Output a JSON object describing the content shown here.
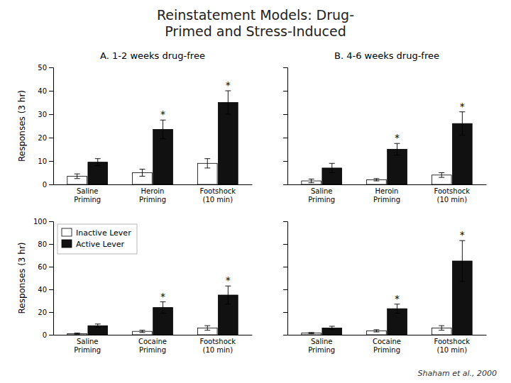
{
  "title": "Reinstatement Models: Drug-\nPrimed and Stress-Induced",
  "annotations": [
    "Shaham et al., 2000"
  ],
  "chart_data": [
    {
      "type": "bar",
      "title": "A. 1-2 weeks drug-free",
      "ylabel": "Responses (3 hr)",
      "categories": [
        "Saline\nPriming",
        "Heroin\nPriming",
        "Footshock\n(10 min)"
      ],
      "series": [
        {
          "name": "Inactive Lever",
          "color": "#ffffff",
          "values": [
            3.5,
            5.0,
            9.0
          ],
          "errors": [
            1.0,
            1.5,
            2.0
          ]
        },
        {
          "name": "Active Lever",
          "color": "#111111",
          "values": [
            9.5,
            23.5,
            35.0
          ],
          "errors": [
            1.5,
            4.0,
            5.0
          ],
          "annotations": [
            null,
            "*",
            "*"
          ]
        }
      ],
      "ylim": [
        0,
        50
      ],
      "yticks": [
        0,
        10,
        20,
        30,
        40,
        50
      ],
      "grid": false
    },
    {
      "type": "bar",
      "title": "B. 4-6 weeks drug-free",
      "categories": [
        "Saline\nPriming",
        "Heroin\nPriming",
        "Footshock\n(10 min)"
      ],
      "series": [
        {
          "name": "Inactive Lever",
          "color": "#ffffff",
          "values": [
            1.5,
            2.0,
            4.0
          ],
          "errors": [
            0.8,
            0.5,
            1.0
          ]
        },
        {
          "name": "Active Lever",
          "color": "#111111",
          "values": [
            7.0,
            15.0,
            26.0
          ],
          "errors": [
            2.0,
            2.5,
            5.0
          ],
          "annotations": [
            null,
            "*",
            "*"
          ]
        }
      ],
      "ylim": [
        0,
        50
      ],
      "yticks": [
        0,
        10,
        20,
        30,
        40,
        50
      ],
      "grid": false,
      "tick_labels": "x"
    },
    {
      "type": "bar",
      "ylabel": "Responses (3 hr)",
      "categories": [
        "Saline\nPriming",
        "Cocaine\nPriming",
        "Footshock\n(10 min)"
      ],
      "series": [
        {
          "name": "Inactive Lever",
          "color": "#ffffff",
          "values": [
            1.0,
            3.0,
            6.0
          ],
          "errors": [
            0.5,
            1.0,
            2.0
          ]
        },
        {
          "name": "Active Lever",
          "color": "#111111",
          "values": [
            8.0,
            24.0,
            35.0
          ],
          "errors": [
            1.5,
            5.0,
            8.0
          ],
          "annotations": [
            null,
            "*",
            "*"
          ]
        }
      ],
      "ylim": [
        0,
        100
      ],
      "yticks": [
        0,
        20,
        40,
        60,
        80,
        100
      ],
      "grid": false,
      "legend": "upper left"
    },
    {
      "type": "bar",
      "categories": [
        "Saline\nPriming",
        "Cocaine\nPriming",
        "Footshock\n(10 min)"
      ],
      "series": [
        {
          "name": "Inactive Lever",
          "color": "#ffffff",
          "values": [
            1.5,
            3.5,
            6.0
          ],
          "errors": [
            0.5,
            1.0,
            2.0
          ]
        },
        {
          "name": "Active Lever",
          "color": "#111111",
          "values": [
            6.0,
            23.0,
            65.0
          ],
          "errors": [
            1.5,
            4.0,
            18.0
          ],
          "annotations": [
            null,
            "*",
            "*"
          ]
        }
      ],
      "ylim": [
        0,
        100
      ],
      "yticks": [
        0,
        20,
        40,
        60,
        80,
        100
      ],
      "grid": false,
      "tick_labels": "x"
    }
  ]
}
